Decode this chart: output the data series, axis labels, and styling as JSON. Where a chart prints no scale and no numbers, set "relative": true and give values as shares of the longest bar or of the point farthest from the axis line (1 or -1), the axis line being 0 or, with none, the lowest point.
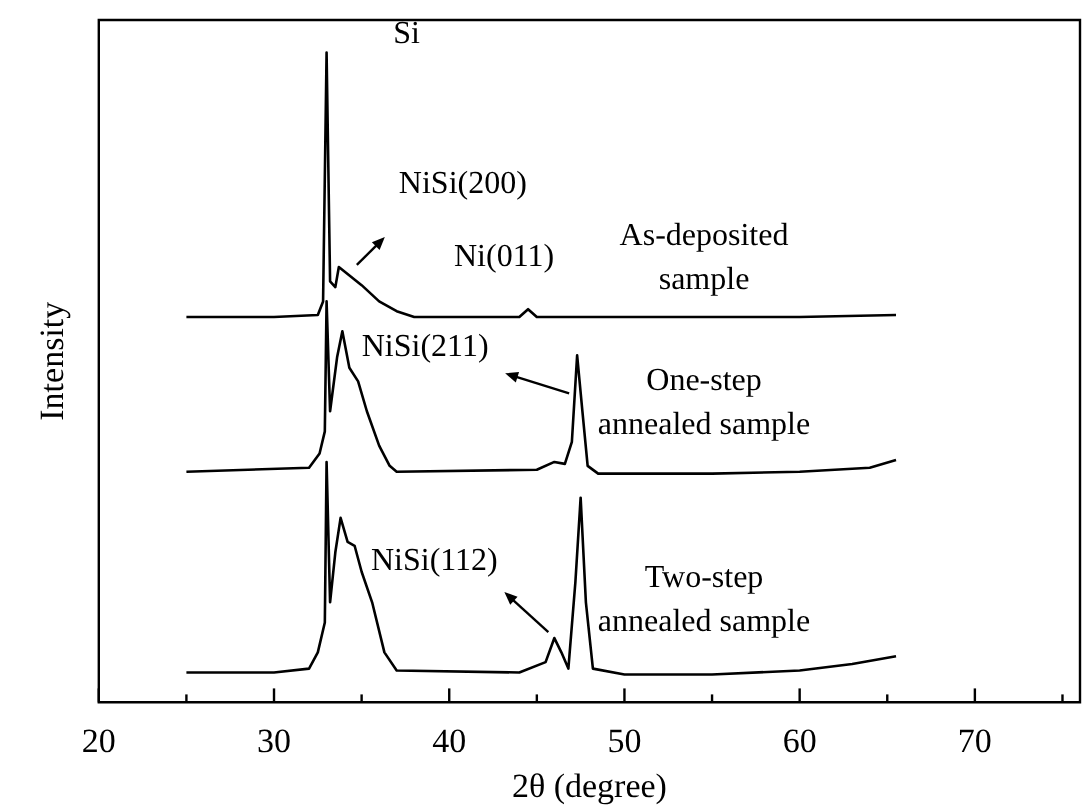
{
  "chart_data": {
    "type": "line",
    "relative": true,
    "xlabel": "2θ (degree)",
    "ylabel": "Intensity",
    "xlim": [
      20,
      76
    ],
    "xticks": [
      20,
      {
        "value": 25,
        "label": null
      },
      30,
      {
        "value": 35,
        "label": null
      },
      40,
      {
        "value": 45,
        "label": null
      },
      50,
      {
        "value": 55,
        "label": null
      },
      60,
      {
        "value": 65,
        "label": null
      },
      70,
      {
        "value": 75,
        "label": null
      }
    ],
    "tick_labels": "x",
    "grid": false,
    "legend": "right",
    "marker": "none",
    "line_style": "solid",
    "annotations": [
      {
        "text": "Si",
        "x": 33,
        "y": 1
      },
      {
        "text": "NiSi(200)",
        "x": 33.7,
        "y": 0.67
      },
      {
        "text": "Ni(011)",
        "x": 44.5,
        "y": 0.605
      },
      {
        "text": "NiSi(211)",
        "x": 47.3,
        "y": 0.534
      },
      {
        "text": "NiSi(112)",
        "x": 46,
        "y": 0.099
      }
    ],
    "series": [
      {
        "name": "As-deposited sample",
        "color": "#000000",
        "x": [
          25,
          30,
          32.5,
          32.8,
          33,
          33.2,
          33.5,
          33.7,
          35,
          36,
          37,
          38,
          44,
          44.5,
          45,
          50,
          60,
          65.5
        ],
        "values": [
          0.593,
          0.593,
          0.596,
          0.617,
          1,
          0.648,
          0.639,
          0.67,
          0.642,
          0.617,
          0.602,
          0.593,
          0.593,
          0.605,
          0.593,
          0.593,
          0.593,
          0.596
        ]
      },
      {
        "name": "One-step annealed sample",
        "color": "#000000",
        "x": [
          25,
          32,
          32.6,
          32.9,
          33,
          33.2,
          33.6,
          33.9,
          34.3,
          34.8,
          35.3,
          36,
          36.6,
          37,
          45,
          46,
          46.6,
          47,
          47.3,
          47.6,
          47.9,
          48.5,
          55,
          60,
          64,
          65.5
        ],
        "values": [
          0.355,
          0.361,
          0.383,
          0.417,
          0.617,
          0.448,
          0.531,
          0.571,
          0.515,
          0.494,
          0.448,
          0.395,
          0.364,
          0.355,
          0.358,
          0.37,
          0.367,
          0.401,
          0.534,
          0.448,
          0.364,
          0.352,
          0.352,
          0.355,
          0.361,
          0.373
        ]
      },
      {
        "name": "Two-step annealed sample",
        "color": "#000000",
        "x": [
          25,
          30,
          32,
          32.5,
          32.9,
          33,
          33.2,
          33.5,
          33.8,
          34.2,
          34.6,
          35,
          35.6,
          36.3,
          37,
          44,
          45.5,
          46,
          46.4,
          46.8,
          47.2,
          47.5,
          47.8,
          48.2,
          50,
          55,
          60,
          63,
          65.5
        ],
        "values": [
          0.046,
          0.046,
          0.052,
          0.077,
          0.123,
          0.37,
          0.154,
          0.231,
          0.284,
          0.247,
          0.241,
          0.201,
          0.154,
          0.077,
          0.049,
          0.046,
          0.062,
          0.099,
          0.077,
          0.052,
          0.185,
          0.315,
          0.154,
          0.052,
          0.043,
          0.043,
          0.049,
          0.059,
          0.071
        ]
      }
    ]
  }
}
